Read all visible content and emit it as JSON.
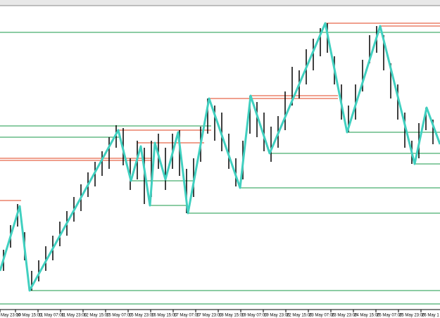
{
  "chart_data": {
    "type": "zigzag-bars",
    "xlim": [
      0,
      625
    ],
    "ylim": [
      0,
      430
    ],
    "xticks": [
      {
        "value": 0,
        "label": "May 23:00"
      },
      {
        "value": 22,
        "label": "10 May 15:00"
      },
      {
        "value": 54,
        "label": "11 May 07:00"
      },
      {
        "value": 86,
        "label": "11 May 23:00"
      },
      {
        "value": 118,
        "label": "12 May 15:00"
      },
      {
        "value": 150,
        "label": "15 May 07:00"
      },
      {
        "value": 182,
        "label": "15 May 23:00"
      },
      {
        "value": 214,
        "label": "16 May 15:00"
      },
      {
        "value": 246,
        "label": "17 May 07:00"
      },
      {
        "value": 278,
        "label": "17 May 23:00"
      },
      {
        "value": 310,
        "label": "18 May 15:00"
      },
      {
        "value": 342,
        "label": "19 May 07:00"
      },
      {
        "value": 374,
        "label": "19 May 23:00"
      },
      {
        "value": 406,
        "label": "22 May 15:00"
      },
      {
        "value": 438,
        "label": "23 May 07:00"
      },
      {
        "value": 470,
        "label": "23 May 23:00"
      },
      {
        "value": 502,
        "label": "24 May 15:00"
      },
      {
        "value": 534,
        "label": "25 May 07:00"
      },
      {
        "value": 566,
        "label": "25 May 23:00"
      },
      {
        "value": 598,
        "label": "26 May 1"
      }
    ],
    "bars": {
      "color": "#000000",
      "x": [
        5,
        15,
        25,
        35,
        45,
        55,
        65,
        75,
        85,
        95,
        105,
        115,
        125,
        135,
        145,
        155,
        165,
        175,
        185,
        195,
        205,
        215,
        225,
        235,
        245,
        255,
        265,
        275,
        285,
        295,
        305,
        315,
        325,
        335,
        345,
        355,
        365,
        375,
        385,
        395,
        405,
        415,
        425,
        435,
        445,
        455,
        465,
        475,
        485,
        495,
        505,
        515,
        525,
        535,
        545,
        555,
        565,
        575,
        585,
        595,
        605,
        615
      ],
      "high": [
        85,
        120,
        150,
        110,
        55,
        70,
        90,
        105,
        125,
        140,
        160,
        178,
        195,
        210,
        225,
        245,
        262,
        258,
        215,
        240,
        230,
        240,
        250,
        230,
        250,
        255,
        200,
        215,
        260,
        300,
        290,
        280,
        250,
        215,
        240,
        304,
        295,
        280,
        260,
        275,
        310,
        345,
        340,
        370,
        385,
        400,
        407,
        360,
        320,
        290,
        320,
        355,
        390,
        403,
        390,
        350,
        320,
        280,
        240,
        265,
        287,
        270
      ],
      "low": [
        55,
        88,
        118,
        70,
        27,
        40,
        55,
        70,
        90,
        105,
        125,
        140,
        160,
        175,
        190,
        200,
        230,
        205,
        170,
        185,
        150,
        160,
        200,
        170,
        200,
        190,
        137,
        160,
        210,
        250,
        240,
        225,
        200,
        175,
        185,
        250,
        245,
        225,
        210,
        230,
        255,
        290,
        300,
        320,
        340,
        360,
        365,
        320,
        270,
        252,
        270,
        310,
        350,
        365,
        340,
        300,
        270,
        230,
        207,
        215,
        255,
        235
      ]
    },
    "zigzag": {
      "color": "#40d0c0",
      "x": [
        0,
        28,
        42,
        168,
        186,
        200,
        213,
        220,
        235,
        253,
        267,
        297,
        341,
        356,
        383,
        462,
        493,
        540,
        589,
        606,
        625
      ],
      "values": [
        55,
        147,
        27,
        255,
        183,
        232,
        148,
        237,
        185,
        252,
        137,
        300,
        173,
        304,
        222,
        407,
        252,
        403,
        207,
        287,
        235
      ]
    },
    "levels": [
      {
        "value": 407,
        "from": 462,
        "to": 625,
        "color": "#e0401e"
      },
      {
        "value": 403,
        "from": 540,
        "to": 625,
        "color": "#e0401e"
      },
      {
        "value": 304,
        "from": 356,
        "to": 480,
        "color": "#e0401e"
      },
      {
        "value": 300,
        "from": 297,
        "to": 480,
        "color": "#e0401e"
      },
      {
        "value": 255,
        "from": 168,
        "to": 300,
        "color": "#e0401e"
      },
      {
        "value": 237,
        "from": 195,
        "to": 290,
        "color": "#e0401e"
      },
      {
        "value": 215,
        "from": 0,
        "to": 215,
        "color": "#e0401e"
      },
      {
        "value": 212,
        "from": 0,
        "to": 215,
        "color": "#e0401e"
      },
      {
        "value": 155,
        "from": 0,
        "to": 30,
        "color": "#e0401e"
      },
      {
        "value": 394,
        "from": 0,
        "to": 625,
        "color": "#1a9a4a"
      },
      {
        "value": 261,
        "from": 0,
        "to": 300,
        "color": "#1a9a4a"
      },
      {
        "value": 252,
        "from": 493,
        "to": 625,
        "color": "#1a9a4a"
      },
      {
        "value": 245,
        "from": 0,
        "to": 170,
        "color": "#1a9a4a"
      },
      {
        "value": 222,
        "from": 383,
        "to": 625,
        "color": "#1a9a4a"
      },
      {
        "value": 207,
        "from": 589,
        "to": 625,
        "color": "#1a9a4a"
      },
      {
        "value": 183,
        "from": 186,
        "to": 275,
        "color": "#1a9a4a"
      },
      {
        "value": 173,
        "from": 341,
        "to": 625,
        "color": "#1a9a4a"
      },
      {
        "value": 148,
        "from": 213,
        "to": 265,
        "color": "#1a9a4a"
      },
      {
        "value": 137,
        "from": 267,
        "to": 625,
        "color": "#1a9a4a"
      },
      {
        "value": 27,
        "from": 42,
        "to": 625,
        "color": "#1a9a4a"
      },
      {
        "value": 8,
        "from": 0,
        "to": 625,
        "color": "#1a9a4a"
      }
    ]
  }
}
